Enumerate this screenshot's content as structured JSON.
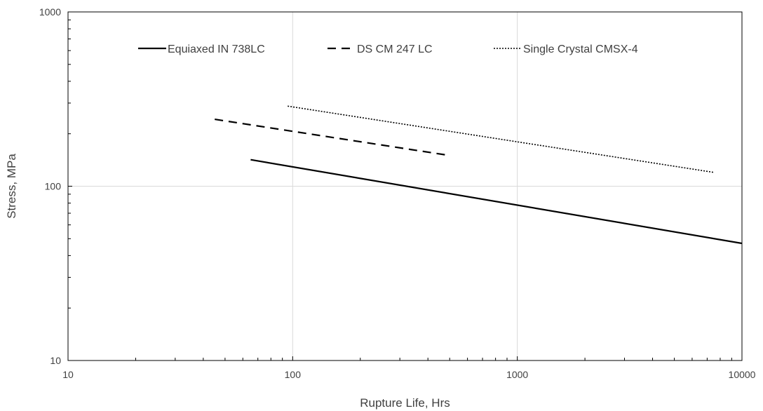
{
  "chart_data": {
    "type": "line",
    "title": "",
    "xlabel": "Rupture Life, Hrs",
    "ylabel": "Stress, MPa",
    "xscale": "log",
    "yscale": "log",
    "xlim": [
      10,
      10000
    ],
    "ylim": [
      10,
      1000
    ],
    "x_tick_labels": [
      "10",
      "100",
      "1000",
      "10000"
    ],
    "y_tick_labels": [
      "10",
      "100",
      "1000"
    ],
    "grid": "major",
    "legend_position": "top",
    "series": [
      {
        "name": "Equiaxed IN 738LC",
        "style": "solid",
        "color": "#000000",
        "x": [
          65,
          10000
        ],
        "y": [
          142,
          47
        ]
      },
      {
        "name": "DS CM 247 LC",
        "style": "dashed",
        "color": "#000000",
        "x": [
          45,
          500
        ],
        "y": [
          242,
          150
        ]
      },
      {
        "name": "Single Crystal CMSX-4",
        "style": "dotted",
        "color": "#000000",
        "x": [
          95,
          7500
        ],
        "y": [
          288,
          120
        ]
      }
    ]
  }
}
